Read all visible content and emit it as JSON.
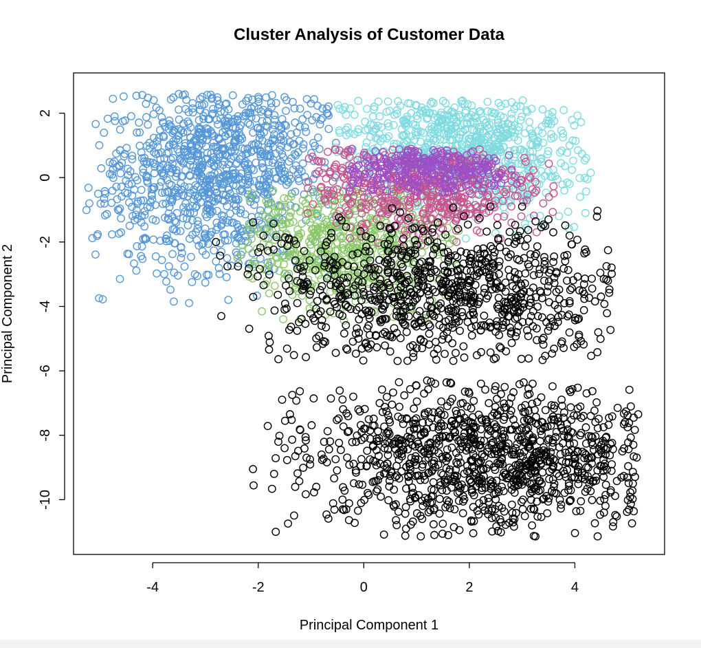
{
  "chart_data": {
    "type": "scatter",
    "title": "Cluster Analysis of Customer Data",
    "xlabel": "Principal Component 1",
    "ylabel": "Principal Component 2",
    "xlim": [
      -5.5,
      5.7
    ],
    "ylim": [
      -11.7,
      3.25
    ],
    "xticks": [
      -4,
      -2,
      0,
      2,
      4
    ],
    "yticks": [
      2,
      0,
      -2,
      -4,
      -6,
      -8,
      -10
    ],
    "xtick_labels": [
      "-4",
      "-2",
      "0",
      "2",
      "4"
    ],
    "ytick_labels": [
      "2",
      "0",
      "-2",
      "-4",
      "-6",
      "-8",
      "-10"
    ],
    "grid": false,
    "legend": "none",
    "marker": "open-circle",
    "series": [
      {
        "color": "#7fdbe0",
        "region": {
          "x": [
            -0.6,
            4.3
          ],
          "y": [
            -1.9,
            2.4
          ],
          "center": [
            1.8,
            1.0
          ]
        },
        "points": [
          [
            -0.4,
            2.1
          ],
          [
            0.2,
            2.2
          ],
          [
            0.9,
            2.0
          ],
          [
            1.5,
            1.8
          ],
          [
            2.1,
            1.7
          ],
          [
            2.7,
            1.5
          ],
          [
            3.2,
            1.3
          ],
          [
            3.6,
            1.25
          ],
          [
            3.9,
            1.0
          ],
          [
            4.3,
            0.15
          ],
          [
            4.2,
            -1.1
          ],
          [
            3.8,
            -0.4
          ],
          [
            3.5,
            0.2
          ],
          [
            3.1,
            0.5
          ],
          [
            2.6,
            0.8
          ],
          [
            2.0,
            1.2
          ],
          [
            1.4,
            1.5
          ],
          [
            0.8,
            1.7
          ],
          [
            0.3,
            1.9
          ],
          [
            3.4,
            -1.5
          ],
          [
            3.9,
            -0.2
          ],
          [
            4.1,
            -0.6
          ],
          [
            3.7,
            -1.2
          ]
        ]
      },
      {
        "color": "#5597d8",
        "region": {
          "x": [
            -5.3,
            -0.5
          ],
          "y": [
            -3.9,
            2.6
          ],
          "center": [
            -2.8,
            0.3
          ]
        },
        "points": [
          [
            -5.2,
            -0.8
          ],
          [
            -4.9,
            -0.5
          ],
          [
            -4.6,
            -1.7
          ],
          [
            -4.2,
            0.6
          ],
          [
            -3.8,
            1.3
          ],
          [
            -3.5,
            1.8
          ],
          [
            -3.1,
            2.1
          ],
          [
            -2.6,
            2.3
          ],
          [
            -2.0,
            2.5
          ],
          [
            -1.5,
            2.5
          ],
          [
            -1.0,
            2.3
          ],
          [
            -0.7,
            2.0
          ],
          [
            -3.6,
            -3.85
          ],
          [
            -3.2,
            -3.0
          ],
          [
            -2.8,
            -2.6
          ],
          [
            -2.3,
            -2.3
          ],
          [
            -1.8,
            -2.9
          ],
          [
            -1.3,
            -2.6
          ],
          [
            -4.0,
            -1.3
          ],
          [
            -4.4,
            -0.2
          ],
          [
            -3.0,
            -0.4
          ],
          [
            -2.2,
            0.9
          ],
          [
            -1.6,
            1.6
          ],
          [
            -3.3,
            -1.9
          ],
          [
            -2.5,
            -1.4
          ]
        ]
      },
      {
        "color": "#c6548f",
        "region": {
          "x": [
            -1.1,
            3.6
          ],
          "y": [
            -2.2,
            0.9
          ],
          "center": [
            1.1,
            -0.3
          ]
        },
        "points": [
          [
            -0.8,
            0.5
          ],
          [
            -0.3,
            0.8
          ],
          [
            0.4,
            0.7
          ],
          [
            1.1,
            0.5
          ],
          [
            1.8,
            0.3
          ],
          [
            2.5,
            0.0
          ],
          [
            3.0,
            -0.3
          ],
          [
            3.4,
            -0.8
          ],
          [
            -0.6,
            -0.5
          ],
          [
            0.1,
            -0.9
          ],
          [
            0.8,
            -1.3
          ],
          [
            1.5,
            -1.6
          ],
          [
            2.2,
            -1.7
          ],
          [
            2.8,
            -1.4
          ]
        ]
      },
      {
        "color": "#9a4fc9",
        "region": {
          "x": [
            -0.3,
            3.0
          ],
          "y": [
            -0.6,
            0.9
          ],
          "center": [
            1.2,
            0.3
          ]
        },
        "points": [
          [
            0.0,
            0.7
          ],
          [
            0.6,
            0.6
          ],
          [
            1.2,
            0.4
          ],
          [
            1.9,
            0.25
          ],
          [
            2.5,
            0.1
          ],
          [
            2.9,
            -0.2
          ]
        ]
      },
      {
        "color": "#8ac869",
        "region": {
          "x": [
            -2.4,
            1.8
          ],
          "y": [
            -4.6,
            -0.3
          ],
          "center": [
            -0.3,
            -2.0
          ]
        },
        "points": [
          [
            -2.3,
            -2.3
          ],
          [
            -1.9,
            -1.6
          ],
          [
            -1.4,
            -1.2
          ],
          [
            -0.8,
            -0.8
          ],
          [
            -0.1,
            -0.5
          ],
          [
            0.6,
            -0.4
          ],
          [
            1.2,
            -0.6
          ],
          [
            1.6,
            -1.1
          ],
          [
            -1.6,
            -2.9
          ],
          [
            -1.0,
            -3.4
          ],
          [
            -0.4,
            -3.6
          ],
          [
            0.3,
            -3.5
          ],
          [
            0.9,
            -4.1
          ],
          [
            -1.2,
            -4.4
          ],
          [
            -0.6,
            -2.5
          ],
          [
            0.5,
            -2.2
          ],
          [
            1.4,
            -2.4
          ]
        ]
      },
      {
        "color": "#000000",
        "region": {
          "x": [
            -2.8,
            4.7
          ],
          "y": [
            -5.7,
            -0.9
          ],
          "center": [
            1.6,
            -3.6
          ]
        },
        "points": [
          [
            -2.8,
            -2.0
          ],
          [
            -2.7,
            -4.3
          ],
          [
            -2.2,
            -3.0
          ],
          [
            -1.9,
            -1.8
          ],
          [
            -1.5,
            -4.1
          ],
          [
            -0.8,
            -4.6
          ],
          [
            -0.1,
            -5.0
          ],
          [
            0.5,
            -5.4
          ],
          [
            1.0,
            -5.3
          ],
          [
            1.6,
            -5.0
          ],
          [
            2.5,
            -5.6
          ],
          [
            2.9,
            -4.8
          ],
          [
            3.3,
            -4.3
          ],
          [
            3.8,
            -3.9
          ],
          [
            3.9,
            -3.9
          ],
          [
            4.6,
            -2.75
          ],
          [
            3.9,
            -1.8
          ],
          [
            3.5,
            -1.3
          ],
          [
            3.0,
            -0.9
          ],
          [
            2.4,
            -0.9
          ],
          [
            1.9,
            -1.2
          ],
          [
            1.3,
            -1.7
          ],
          [
            0.5,
            -1.6
          ],
          [
            -0.7,
            -2.0
          ],
          [
            -1.2,
            -2.8
          ],
          [
            -0.3,
            -3.1
          ],
          [
            0.7,
            -3.9
          ],
          [
            1.5,
            -3.3
          ],
          [
            2.0,
            -2.6
          ],
          [
            2.7,
            -2.3
          ]
        ]
      },
      {
        "color": "#000000",
        "region": {
          "x": [
            -2.1,
            5.2
          ],
          "y": [
            -11.2,
            -6.3
          ],
          "center": [
            2.4,
            -8.6
          ]
        },
        "points": [
          [
            -2.1,
            -9.05
          ],
          [
            -1.7,
            -9.2
          ],
          [
            -1.3,
            -9.6
          ],
          [
            -0.9,
            -9.6
          ],
          [
            -0.4,
            -10.3
          ],
          [
            -0.2,
            -6.8
          ],
          [
            0.3,
            -7.0
          ],
          [
            0.8,
            -10.9
          ],
          [
            1.2,
            -6.3
          ],
          [
            1.6,
            -11.1
          ],
          [
            2.0,
            -6.7
          ],
          [
            2.6,
            -10.7
          ],
          [
            3.2,
            -6.4
          ],
          [
            3.9,
            -6.6
          ],
          [
            3.9,
            -10.05
          ],
          [
            4.3,
            -7.4
          ],
          [
            4.7,
            -8.9
          ],
          [
            5.1,
            -9.5
          ],
          [
            5.2,
            -7.35
          ],
          [
            4.9,
            -8.5
          ],
          [
            4.4,
            -9.3
          ],
          [
            3.6,
            -9.6
          ],
          [
            -0.8,
            -8.6
          ],
          [
            -1.5,
            -8.4
          ],
          [
            0.2,
            -7.7
          ],
          [
            1.4,
            -7.5
          ],
          [
            0.6,
            -9.3
          ]
        ]
      }
    ]
  }
}
